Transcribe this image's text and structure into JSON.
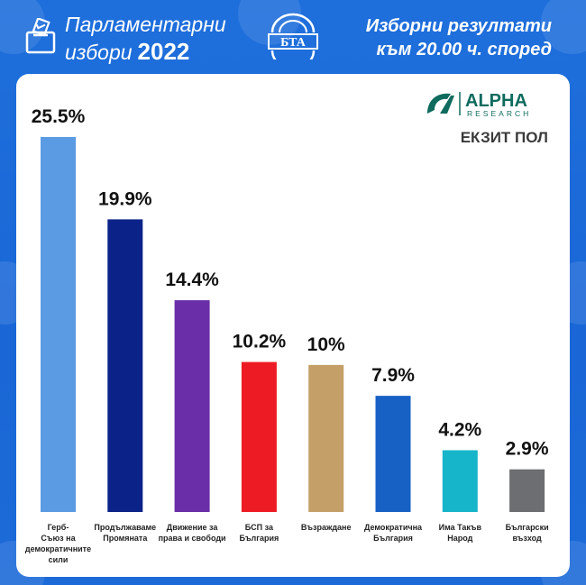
{
  "header": {
    "title_line1": "Парламентарни",
    "title_line2": "избори",
    "year": "2022",
    "logo_text": "БТА",
    "subtitle_line1": "Изборни резултати",
    "subtitle_line2": "към 20.00 ч. според"
  },
  "pollster": {
    "name": "ALPHA",
    "sub": "RESEARCH",
    "label": "ЕКЗИТ ПОЛ"
  },
  "chart_data": {
    "type": "bar",
    "categories": [
      "Герб-Съюз на демократичните сили",
      "Продължаваме Промяната",
      "Движение за права и свободи",
      "БСП за България",
      "Възраждане",
      "Демократична България",
      "Има Такъв Народ",
      "Български възход"
    ],
    "category_lines": [
      [
        "Герб-",
        "Съюз на",
        "демократичните",
        "сили"
      ],
      [
        "Продължаваме",
        "Промяната"
      ],
      [
        "Движение за",
        "права и свободи"
      ],
      [
        "БСП за",
        "България"
      ],
      [
        "Възраждане"
      ],
      [
        "Демократична",
        "България"
      ],
      [
        "Има Такъв",
        "Народ"
      ],
      [
        "Български",
        "възход"
      ]
    ],
    "values": [
      25.5,
      19.9,
      14.4,
      10.2,
      10,
      7.9,
      4.2,
      2.9
    ],
    "value_labels": [
      "25.5%",
      "19.9%",
      "14.4%",
      "10.2%",
      "10%",
      "7.9%",
      "4.2%",
      "2.9%"
    ],
    "colors": [
      "#5a9be3",
      "#0b2388",
      "#6a2ea8",
      "#ed1c24",
      "#c4a068",
      "#1761c4",
      "#17b5c9",
      "#6d6e71"
    ],
    "ylim": [
      0,
      25.5
    ]
  }
}
